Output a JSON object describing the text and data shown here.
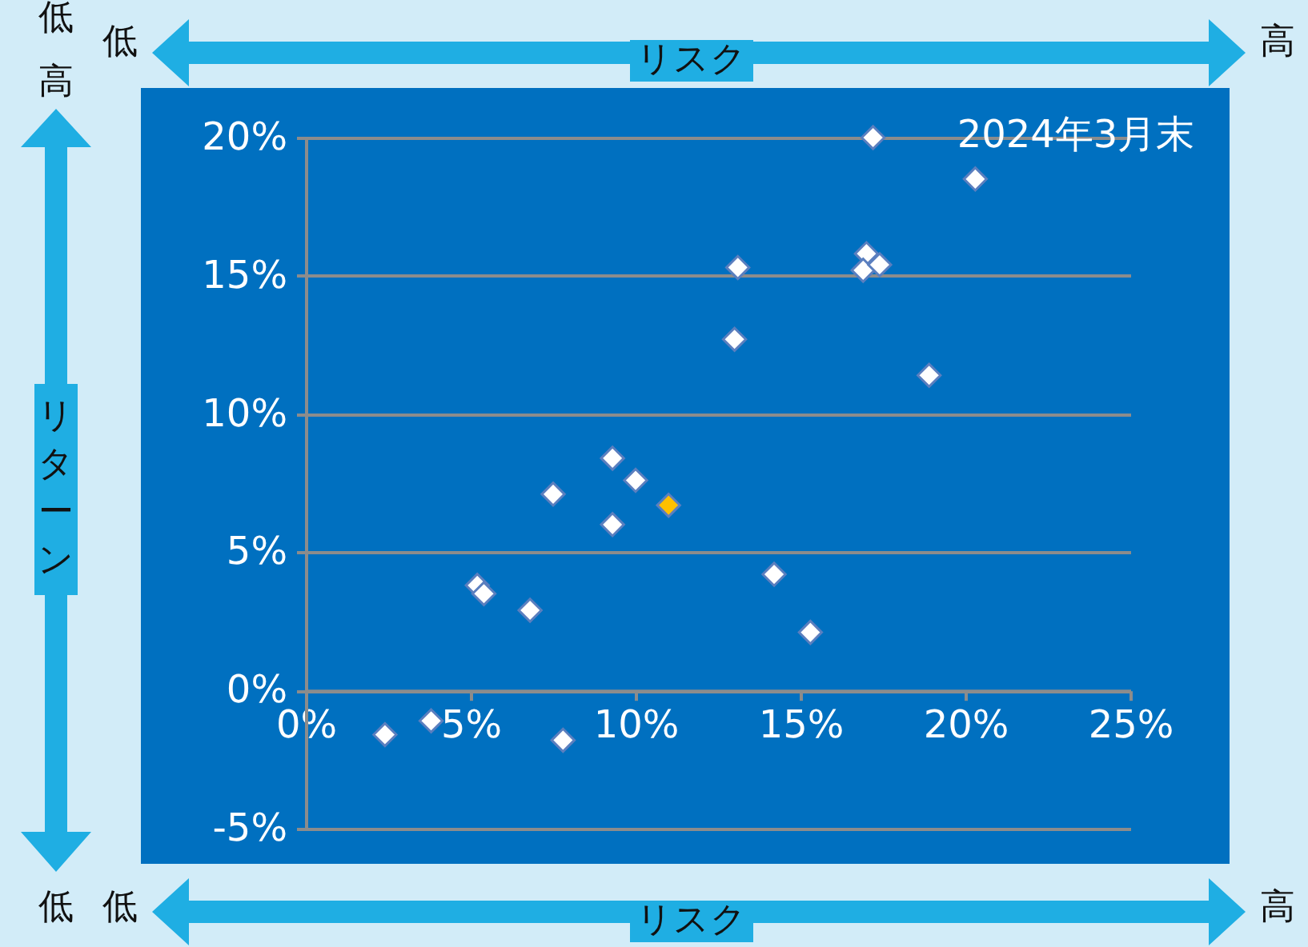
{
  "chart_data": {
    "type": "scatter",
    "xlabel": "リスク",
    "ylabel": "リターン",
    "annotations": [
      "低",
      "低",
      "リスク",
      "高",
      "高",
      "低",
      "低",
      "高",
      "2024年3月末"
    ],
    "series": [
      {
        "color": "#ffffff",
        "x": [
          17.2,
          20.3,
          17.0,
          16.9,
          17.4,
          13.1,
          13.0,
          18.9,
          9.3,
          10.0,
          7.5,
          9.3,
          5.2,
          5.4,
          6.8,
          14.2,
          15.3,
          2.4,
          3.8,
          7.8
        ],
        "values": [
          20.0,
          18.5,
          15.8,
          15.2,
          15.4,
          15.3,
          12.7,
          11.4,
          8.4,
          7.6,
          7.1,
          6.0,
          3.8,
          3.5,
          2.9,
          4.2,
          2.1,
          -1.6,
          -1.1,
          -1.8
        ]
      },
      {
        "color": "#ffc000",
        "x": [
          11.0
        ],
        "values": [
          6.7
        ]
      }
    ],
    "marker": "diamond",
    "xlim": [
      0,
      25
    ],
    "ylim": [
      -5,
      20
    ],
    "xticks": [
      {
        "value": 0,
        "label": "0%"
      },
      {
        "value": 5,
        "label": "5%"
      },
      {
        "value": 10,
        "label": "10%"
      },
      {
        "value": 15,
        "label": "15%"
      },
      {
        "value": 20,
        "label": "20%"
      },
      {
        "value": 25,
        "label": "25%"
      }
    ],
    "yticks": [
      {
        "value": -5,
        "label": "-5%"
      },
      {
        "value": 0,
        "label": "0%"
      },
      {
        "value": 5,
        "label": "5%"
      },
      {
        "value": 10,
        "label": "10%"
      },
      {
        "value": 15,
        "label": "15%"
      },
      {
        "value": 20,
        "label": "20%"
      }
    ],
    "grid": "y"
  }
}
